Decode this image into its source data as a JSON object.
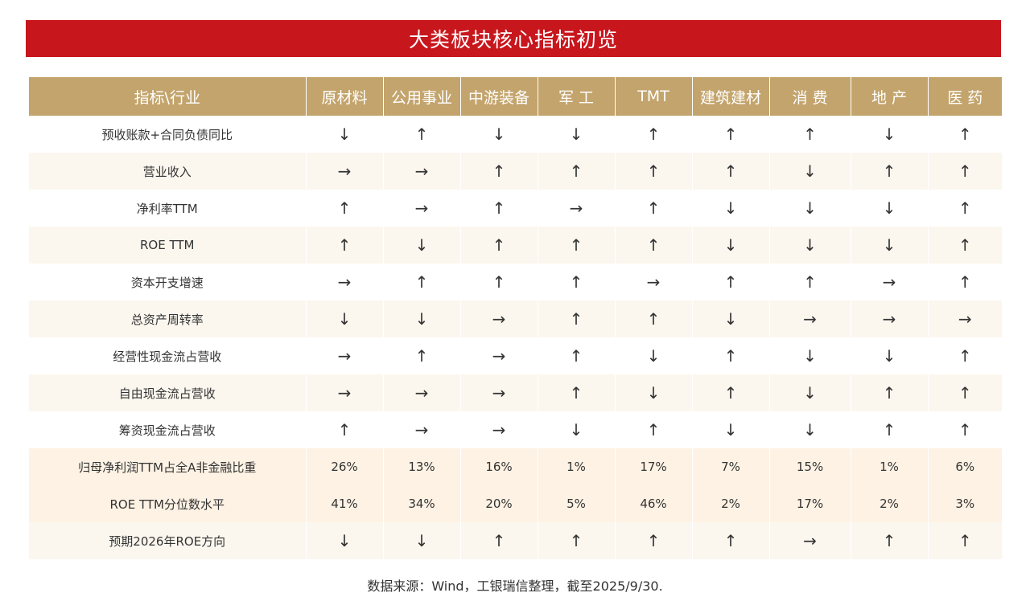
{
  "title": "大类板块核心指标初览",
  "header": {
    "corner": "指标\\行业",
    "industries": [
      "原材料",
      "公用事业",
      "中游装备",
      "军 工",
      "TMT",
      "建筑建材",
      "消 费",
      "地 产",
      "医 药"
    ]
  },
  "rows": [
    {
      "label": "预收账款+合同负债同比",
      "values": [
        "↓",
        "↑",
        "↓",
        "↓",
        "↑",
        "↑",
        "↑",
        "↓",
        "↑"
      ]
    },
    {
      "label": "营业收入",
      "values": [
        "→",
        "→",
        "↑",
        "↑",
        "↑",
        "↑",
        "↓",
        "↑",
        "↑"
      ]
    },
    {
      "label": "净利率TTM",
      "values": [
        "↑",
        "→",
        "↑",
        "→",
        "↑",
        "↓",
        "↓",
        "↓",
        "↑"
      ]
    },
    {
      "label": "ROE TTM",
      "values": [
        "↑",
        "↓",
        "↑",
        "↑",
        "↑",
        "↓",
        "↓",
        "↓",
        "↑"
      ]
    },
    {
      "label": "资本开支增速",
      "values": [
        "→",
        "↑",
        "↑",
        "↑",
        "→",
        "↑",
        "↑",
        "→",
        "↑"
      ]
    },
    {
      "label": "总资产周转率",
      "values": [
        "↓",
        "↓",
        "→",
        "↑",
        "↑",
        "↓",
        "→",
        "→",
        "→"
      ]
    },
    {
      "label": "经营性现金流占营收",
      "values": [
        "→",
        "↑",
        "→",
        "↑",
        "↓",
        "↑",
        "↓",
        "↓",
        "↑"
      ]
    },
    {
      "label": "自由现金流占营收",
      "values": [
        "→",
        "→",
        "→",
        "↑",
        "↓",
        "↑",
        "↓",
        "↑",
        "↑"
      ]
    },
    {
      "label": "筹资现金流占营收",
      "values": [
        "↑",
        "→",
        "→",
        "↓",
        "↑",
        "↓",
        "↓",
        "↑",
        "↑"
      ]
    },
    {
      "label": "归母净利润TTM占全A非金融比重",
      "values": [
        "26%",
        "13%",
        "16%",
        "1%",
        "17%",
        "7%",
        "15%",
        "1%",
        "6%"
      ]
    },
    {
      "label": "ROE TTM分位数水平",
      "values": [
        "41%",
        "34%",
        "20%",
        "5%",
        "46%",
        "2%",
        "17%",
        "2%",
        "3%"
      ]
    },
    {
      "label": "预期2026年ROE方向",
      "values": [
        "↓",
        "↓",
        "↑",
        "↑",
        "↑",
        "↑",
        "→",
        "↑",
        "↑"
      ]
    }
  ],
  "source": "数据来源：Wind，工银瑞信整理，截至2025/9/30."
}
